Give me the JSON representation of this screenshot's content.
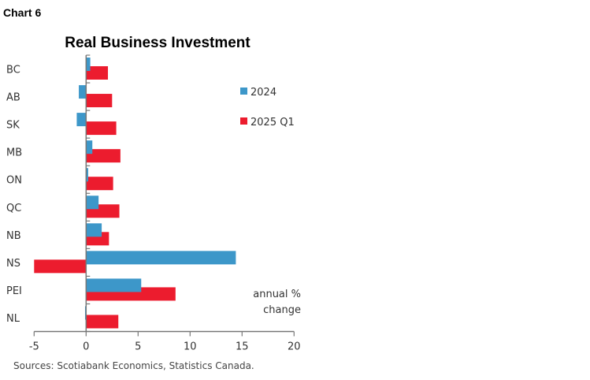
{
  "header": {
    "label": "Chart 6"
  },
  "chart_data": {
    "type": "bar",
    "orientation": "horizontal",
    "title": "Real Business Investment",
    "categories": [
      "BC",
      "AB",
      "SK",
      "MB",
      "ON",
      "QC",
      "NB",
      "NS",
      "PEI",
      "NL"
    ],
    "series": [
      {
        "name": "2024",
        "color": "#3d97c9",
        "values": [
          0.4,
          -0.7,
          -0.9,
          0.6,
          0.2,
          1.2,
          1.5,
          14.4,
          5.3,
          -0.1
        ]
      },
      {
        "name": "2025 Q1",
        "color": "#ec1c2e",
        "values": [
          2.1,
          2.5,
          2.9,
          3.3,
          2.6,
          3.2,
          2.2,
          -5.0,
          8.6,
          3.1
        ]
      }
    ],
    "xlim": [
      -5,
      20
    ],
    "xticks": [
      "-5",
      "0",
      "5",
      "10",
      "15",
      "20"
    ],
    "annotation": [
      "annual %",
      "change"
    ],
    "legend": "top-right",
    "grid": false
  },
  "footer": {
    "source": "Sources: Scotiabank Economics, Statistics Canada."
  }
}
